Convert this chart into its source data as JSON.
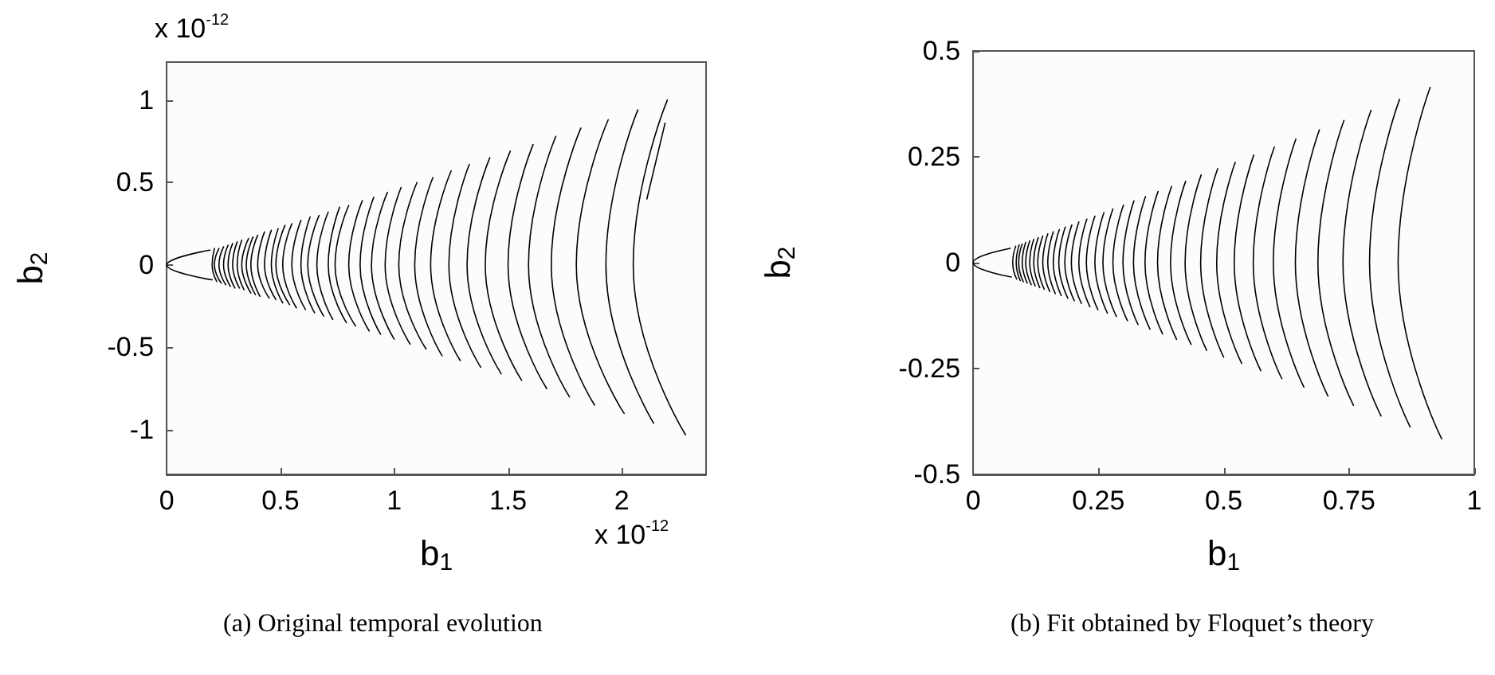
{
  "chart_data": [
    {
      "type": "line",
      "xlabel": "b$_{1}$",
      "ylabel": "b$_{2}$",
      "color": "#000000",
      "xlim": [
        0,
        2.37
      ],
      "ylim": [
        -1.27,
        1.23
      ],
      "xticks": [
        0,
        0.5,
        1,
        1.5,
        2
      ],
      "yticks": [
        -1,
        -0.5,
        0,
        0.5,
        1
      ],
      "annotations": [
        "x 10$^{-12}$",
        "x 10$^{-12}$",
        "(a) Original temporal evolution"
      ],
      "x": [
        2.2,
        2.05,
        2.28,
        null,
        2.07,
        1.93,
        2.14,
        null,
        1.94,
        1.8,
        2.01,
        null,
        1.82,
        1.69,
        1.88,
        null,
        1.71,
        1.59,
        1.77,
        null,
        1.61,
        1.5,
        1.67,
        null,
        1.51,
        1.4,
        1.56,
        null,
        1.42,
        1.32,
        1.47,
        null,
        1.33,
        1.24,
        1.38,
        null,
        1.25,
        1.16,
        1.29,
        null,
        1.17,
        1.09,
        1.21,
        null,
        1.1,
        1.02,
        1.14,
        null,
        1.03,
        0.96,
        1.07,
        null,
        0.97,
        0.9,
        1.0,
        null,
        0.91,
        0.85,
        0.94,
        null,
        0.86,
        0.8,
        0.89,
        null,
        0.8,
        0.74,
        0.83,
        null,
        0.76,
        0.71,
        0.79,
        null,
        0.71,
        0.66,
        0.73,
        null,
        0.67,
        0.62,
        0.69,
        null,
        0.63,
        0.59,
        0.65,
        null,
        0.59,
        0.55,
        0.61,
        null,
        0.55,
        0.51,
        0.57,
        null,
        0.52,
        0.48,
        0.54,
        null,
        0.49,
        0.46,
        0.51,
        null,
        0.46,
        0.43,
        0.48,
        null,
        0.43,
        0.4,
        0.45,
        null,
        0.4,
        0.37,
        0.41,
        null,
        0.38,
        0.35,
        0.39,
        null,
        0.36,
        0.33,
        0.37,
        null,
        0.33,
        0.31,
        0.34,
        null,
        0.31,
        0.29,
        0.32,
        null,
        0.29,
        0.27,
        0.3,
        null,
        0.27,
        0.25,
        0.28,
        null,
        0.25,
        0.23,
        0.26,
        null,
        0.23,
        0.21,
        0.24,
        null,
        0.21,
        0.2,
        0.22,
        null,
        0.19,
        0,
        0.2,
        null,
        2.19,
        2.11
      ],
      "values": [
        1.0,
        0,
        -1.03,
        null,
        0.94,
        0,
        -0.96,
        null,
        0.88,
        0,
        -0.9,
        null,
        0.83,
        0,
        -0.85,
        null,
        0.78,
        0,
        -0.8,
        null,
        0.73,
        0,
        -0.75,
        null,
        0.69,
        0,
        -0.7,
        null,
        0.65,
        0,
        -0.66,
        null,
        0.61,
        0,
        -0.62,
        null,
        0.57,
        0,
        -0.58,
        null,
        0.53,
        0,
        -0.55,
        null,
        0.5,
        0,
        -0.51,
        null,
        0.47,
        0,
        -0.48,
        null,
        0.44,
        0,
        -0.45,
        null,
        0.41,
        0,
        -0.42,
        null,
        0.39,
        0,
        -0.4,
        null,
        0.36,
        0,
        -0.37,
        null,
        0.35,
        0,
        -0.35,
        null,
        0.32,
        0,
        -0.33,
        null,
        0.3,
        0,
        -0.31,
        null,
        0.29,
        0,
        -0.29,
        null,
        0.27,
        0,
        -0.27,
        null,
        0.25,
        0,
        -0.26,
        null,
        0.24,
        0,
        -0.24,
        null,
        0.22,
        0,
        -0.23,
        null,
        0.21,
        0,
        -0.21,
        null,
        0.2,
        0,
        -0.2,
        null,
        0.18,
        0,
        -0.19,
        null,
        0.17,
        0,
        -0.18,
        null,
        0.16,
        0,
        -0.17,
        null,
        0.15,
        0,
        -0.15,
        null,
        0.14,
        0,
        -0.14,
        null,
        0.13,
        0,
        -0.14,
        null,
        0.12,
        0,
        -0.13,
        null,
        0.11,
        0,
        -0.12,
        null,
        0.1,
        0,
        -0.11,
        null,
        0.1,
        0,
        -0.1,
        null,
        0.09,
        0,
        -0.09,
        null,
        0.86,
        0.4
      ]
    },
    {
      "type": "line",
      "xlabel": "b$_{1}$",
      "ylabel": "b$_{2}$",
      "color": "#000000",
      "xlim": [
        0,
        1
      ],
      "ylim": [
        -0.5,
        0.5
      ],
      "xticks": [
        0,
        0.25,
        0.5,
        0.75,
        1
      ],
      "yticks": [
        -0.5,
        -0.25,
        0,
        0.25,
        0.5
      ],
      "annotations": [
        "(b) Fit obtained by Floquet’s theory"
      ],
      "x": [
        0.912,
        0.848,
        0.935,
        null,
        0.851,
        0.791,
        0.872,
        null,
        0.794,
        0.738,
        0.814,
        null,
        0.74,
        0.688,
        0.759,
        null,
        0.691,
        0.643,
        0.708,
        null,
        0.644,
        0.599,
        0.66,
        null,
        0.601,
        0.559,
        0.616,
        null,
        0.56,
        0.521,
        0.574,
        null,
        0.523,
        0.486,
        0.536,
        null,
        0.488,
        0.454,
        0.5,
        null,
        0.455,
        0.423,
        0.466,
        null,
        0.424,
        0.394,
        0.435,
        null,
        0.396,
        0.368,
        0.406,
        null,
        0.369,
        0.343,
        0.378,
        null,
        0.344,
        0.32,
        0.353,
        null,
        0.321,
        0.299,
        0.329,
        null,
        0.3,
        0.279,
        0.308,
        null,
        0.279,
        0.259,
        0.286,
        null,
        0.261,
        0.243,
        0.268,
        null,
        0.243,
        0.226,
        0.249,
        null,
        0.227,
        0.211,
        0.233,
        null,
        0.211,
        0.196,
        0.216,
        null,
        0.197,
        0.183,
        0.202,
        null,
        0.184,
        0.171,
        0.189,
        null,
        0.172,
        0.16,
        0.176,
        null,
        0.16,
        0.149,
        0.164,
        null,
        0.149,
        0.139,
        0.153,
        null,
        0.139,
        0.129,
        0.142,
        null,
        0.13,
        0.121,
        0.133,
        null,
        0.121,
        0.113,
        0.124,
        null,
        0.113,
        0.105,
        0.116,
        null,
        0.105,
        0.098,
        0.108,
        null,
        0.098,
        0.091,
        0.1,
        null,
        0.092,
        0.086,
        0.094,
        null,
        0.085,
        0.079,
        0.087,
        null,
        0.074,
        0,
        0.076
      ],
      "values": [
        0.414,
        0,
        -0.416,
        null,
        0.386,
        0,
        -0.388,
        null,
        0.36,
        0,
        -0.362,
        null,
        0.336,
        0,
        -0.337,
        null,
        0.314,
        0,
        -0.315,
        null,
        0.292,
        0,
        -0.294,
        null,
        0.273,
        0,
        -0.274,
        null,
        0.254,
        0,
        -0.255,
        null,
        0.237,
        0,
        -0.238,
        null,
        0.222,
        0,
        -0.223,
        null,
        0.207,
        0,
        -0.207,
        null,
        0.192,
        0,
        -0.193,
        null,
        0.18,
        0,
        -0.181,
        null,
        0.168,
        0,
        -0.168,
        null,
        0.156,
        0,
        -0.157,
        null,
        0.146,
        0,
        -0.146,
        null,
        0.136,
        0,
        -0.137,
        null,
        0.127,
        0,
        -0.127,
        null,
        0.118,
        0,
        -0.119,
        null,
        0.11,
        0,
        -0.111,
        null,
        0.103,
        0,
        -0.104,
        null,
        0.096,
        0,
        -0.096,
        null,
        0.089,
        0,
        -0.09,
        null,
        0.084,
        0,
        -0.084,
        null,
        0.078,
        0,
        -0.078,
        null,
        0.073,
        0,
        -0.073,
        null,
        0.068,
        0,
        -0.068,
        null,
        0.063,
        0,
        -0.063,
        null,
        0.059,
        0,
        -0.059,
        null,
        0.055,
        0,
        -0.055,
        null,
        0.051,
        0,
        -0.052,
        null,
        0.048,
        0,
        -0.048,
        null,
        0.044,
        0,
        -0.045,
        null,
        0.042,
        0,
        -0.042,
        null,
        0.039,
        0,
        -0.039,
        null,
        0.034,
        0,
        -0.034
      ]
    }
  ]
}
